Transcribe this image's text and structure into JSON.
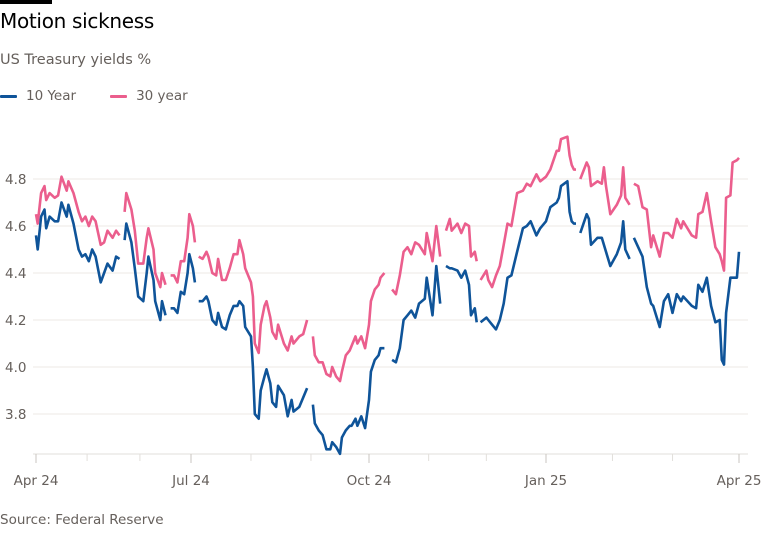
{
  "title": "Motion sickness",
  "subtitle": "US Treasury yields %",
  "source": "Source: Federal Reserve",
  "chart_data": {
    "type": "line",
    "title": "Motion sickness",
    "subtitle": "US Treasury yields %",
    "ylim": [
      3.63,
      5.0
    ],
    "yticks": [
      3.8,
      4.0,
      4.2,
      4.4,
      4.6,
      4.8
    ],
    "ytick_labels": [
      "3.8",
      "4.0",
      "4.2",
      "4.4",
      "4.6",
      "4.8"
    ],
    "xticks": [
      "2024-04-01",
      "2024-07-01",
      "2024-10-01",
      "2025-01-01",
      "2025-04-01"
    ],
    "xtick_labels": [
      "Apr 24",
      "Jul 24",
      "Oct 24",
      "Jan 25",
      "Apr 25"
    ],
    "grid": true,
    "legend_position": "top-left",
    "x": [
      "2024-04-01",
      "2024-04-02",
      "2024-04-04",
      "2024-04-06",
      "2024-04-07",
      "2024-04-09",
      "2024-04-12",
      "2024-04-14",
      "2024-04-16",
      "2024-04-19",
      "2024-04-20",
      "2024-04-23",
      "2024-04-26",
      "2024-04-28",
      "2024-04-30",
      "2024-05-02",
      "2024-05-04",
      "2024-05-06",
      "2024-05-09",
      "2024-05-11",
      "2024-05-13",
      "2024-05-16",
      "2024-05-18",
      "2024-05-20",
      "2024-05-21",
      "2024-05-23",
      "2024-05-24",
      "2024-05-27",
      "2024-05-29",
      "2024-05-31",
      "2024-06-03",
      "2024-06-05",
      "2024-06-06",
      "2024-06-09",
      "2024-06-10",
      "2024-06-13",
      "2024-06-14",
      "2024-06-16",
      "2024-06-17",
      "2024-06-19",
      "2024-06-21",
      "2024-06-23",
      "2024-06-25",
      "2024-06-27",
      "2024-06-29",
      "2024-06-30",
      "2024-07-02",
      "2024-07-03",
      "2024-07-04",
      "2024-07-05",
      "2024-07-07",
      "2024-07-09",
      "2024-07-10",
      "2024-07-12",
      "2024-07-14",
      "2024-07-15",
      "2024-07-17",
      "2024-07-19",
      "2024-07-21",
      "2024-07-23",
      "2024-07-25",
      "2024-07-26",
      "2024-07-28",
      "2024-07-29",
      "2024-08-01",
      "2024-08-02",
      "2024-08-03",
      "2024-08-05",
      "2024-08-06",
      "2024-08-08",
      "2024-08-09",
      "2024-08-11",
      "2024-08-12",
      "2024-08-14",
      "2024-08-15",
      "2024-08-18",
      "2024-08-20",
      "2024-08-22",
      "2024-08-23",
      "2024-08-26",
      "2024-08-28",
      "2024-08-30",
      "2024-09-01",
      "2024-09-02",
      "2024-09-03",
      "2024-09-05",
      "2024-09-07",
      "2024-09-09",
      "2024-09-11",
      "2024-09-12",
      "2024-09-14",
      "2024-09-16",
      "2024-09-17",
      "2024-09-19",
      "2024-09-21",
      "2024-09-22",
      "2024-09-24",
      "2024-09-25",
      "2024-09-27",
      "2024-09-29",
      "2024-10-01",
      "2024-10-02",
      "2024-10-04",
      "2024-10-06",
      "2024-10-07",
      "2024-10-09",
      "2024-10-11",
      "2024-10-13",
      "2024-10-15",
      "2024-10-17",
      "2024-10-19",
      "2024-10-21",
      "2024-10-23",
      "2024-10-25",
      "2024-10-27",
      "2024-10-30",
      "2024-10-31",
      "2024-11-03",
      "2024-11-05",
      "2024-11-07",
      "2024-11-09",
      "2024-11-10",
      "2024-11-12",
      "2024-11-13",
      "2024-11-16",
      "2024-11-18",
      "2024-11-20",
      "2024-11-22",
      "2024-11-23",
      "2024-11-25",
      "2024-11-26",
      "2024-11-27",
      "2024-11-28",
      "2024-12-01",
      "2024-12-02",
      "2024-12-04",
      "2024-12-06",
      "2024-12-08",
      "2024-12-10",
      "2024-12-12",
      "2024-12-14",
      "2024-12-17",
      "2024-12-20",
      "2024-12-22",
      "2024-12-24",
      "2024-12-27",
      "2024-12-29",
      "2025-01-01",
      "2025-01-03",
      "2025-01-06",
      "2025-01-07",
      "2025-01-08",
      "2025-01-11",
      "2025-01-12",
      "2025-01-13",
      "2025-01-14",
      "2025-01-15",
      "2025-01-16",
      "2025-01-17",
      "2025-01-20",
      "2025-01-21",
      "2025-01-22",
      "2025-01-25",
      "2025-01-27",
      "2025-01-28",
      "2025-01-29",
      "2025-01-31",
      "2025-02-03",
      "2025-02-05",
      "2025-02-06",
      "2025-02-07",
      "2025-02-09",
      "2025-02-10",
      "2025-02-11",
      "2025-02-13",
      "2025-02-15",
      "2025-02-17",
      "2025-02-19",
      "2025-02-20",
      "2025-02-23",
      "2025-02-25",
      "2025-02-27",
      "2025-03-01",
      "2025-03-03",
      "2025-03-05",
      "2025-03-06",
      "2025-03-10",
      "2025-03-12",
      "2025-03-13",
      "2025-03-15",
      "2025-03-17",
      "2025-03-19",
      "2025-03-21",
      "2025-03-23",
      "2025-03-24",
      "2025-03-25",
      "2025-03-26",
      "2025-03-28",
      "2025-03-29",
      "2025-03-31",
      "2025-04-01"
    ],
    "series": [
      {
        "name": "10 Year",
        "color": "#0f5499",
        "values": [
          4.56,
          4.5,
          4.64,
          4.67,
          4.59,
          4.64,
          4.62,
          4.62,
          4.7,
          4.64,
          4.69,
          4.61,
          4.5,
          4.47,
          4.48,
          4.45,
          4.5,
          4.47,
          4.36,
          4.4,
          4.44,
          4.41,
          4.47,
          4.46,
          null,
          4.54,
          4.61,
          4.53,
          4.42,
          4.3,
          4.28,
          4.4,
          4.47,
          4.37,
          4.28,
          4.2,
          4.28,
          4.22,
          null,
          4.25,
          4.25,
          4.23,
          4.32,
          4.31,
          4.4,
          4.48,
          4.42,
          4.36,
          null,
          4.28,
          4.28,
          4.3,
          4.28,
          4.2,
          4.18,
          4.23,
          4.17,
          4.16,
          4.22,
          4.26,
          4.26,
          4.28,
          4.26,
          4.17,
          4.13,
          4.0,
          3.8,
          3.78,
          3.9,
          3.96,
          3.99,
          3.93,
          3.85,
          3.83,
          3.92,
          3.88,
          3.79,
          3.86,
          3.81,
          3.83,
          3.87,
          3.91,
          null,
          3.84,
          3.76,
          3.73,
          3.71,
          3.65,
          3.65,
          3.68,
          3.66,
          3.63,
          3.7,
          3.73,
          3.75,
          3.75,
          3.78,
          3.75,
          3.79,
          3.74,
          3.86,
          3.98,
          4.03,
          4.05,
          4.08,
          4.08,
          null,
          4.03,
          4.02,
          4.08,
          4.2,
          4.22,
          4.24,
          4.21,
          4.27,
          4.29,
          4.38,
          4.22,
          4.43,
          4.27,
          null,
          4.43,
          4.42,
          4.42,
          4.41,
          4.38,
          4.41,
          4.35,
          4.22,
          4.25,
          4.19,
          null,
          4.19,
          4.21,
          4.2,
          4.18,
          4.16,
          4.2,
          4.27,
          4.38,
          4.39,
          4.49,
          4.59,
          4.6,
          4.62,
          4.56,
          4.59,
          4.62,
          4.68,
          4.7,
          4.72,
          4.77,
          4.79,
          4.66,
          4.62,
          4.61,
          4.61,
          null,
          4.57,
          4.65,
          4.63,
          4.52,
          4.55,
          4.55,
          4.52,
          4.49,
          4.43,
          4.48,
          4.53,
          4.62,
          4.5,
          4.46,
          null,
          4.55,
          4.51,
          4.47,
          4.34,
          4.27,
          4.26,
          4.17,
          4.28,
          4.31,
          4.23,
          4.31,
          4.28,
          4.3,
          4.26,
          4.25,
          4.35,
          4.32,
          4.38,
          4.26,
          4.19,
          4.2,
          4.03,
          4.01,
          4.23,
          4.38,
          4.38,
          4.38,
          4.49
        ]
      },
      {
        "name": "30 year",
        "color": "#eb5e8d",
        "values": [
          4.65,
          4.61,
          4.74,
          4.77,
          4.71,
          4.74,
          4.72,
          4.73,
          4.81,
          4.75,
          4.79,
          4.74,
          4.66,
          4.62,
          4.64,
          4.6,
          4.64,
          4.62,
          4.52,
          4.53,
          4.58,
          4.55,
          4.58,
          4.56,
          null,
          4.66,
          4.74,
          4.67,
          4.58,
          4.44,
          4.44,
          4.55,
          4.59,
          4.5,
          4.4,
          4.34,
          4.4,
          4.35,
          null,
          4.39,
          4.39,
          4.36,
          4.45,
          4.45,
          4.55,
          4.65,
          4.6,
          4.53,
          null,
          4.47,
          4.46,
          4.49,
          4.47,
          4.4,
          4.39,
          4.46,
          4.37,
          4.37,
          4.42,
          4.48,
          4.48,
          4.54,
          4.48,
          4.42,
          4.36,
          4.3,
          4.1,
          4.06,
          4.18,
          4.26,
          4.28,
          4.21,
          4.15,
          4.12,
          4.18,
          4.1,
          4.07,
          4.13,
          4.1,
          4.13,
          4.14,
          4.2,
          null,
          4.13,
          4.05,
          4.02,
          4.02,
          3.97,
          3.96,
          4.0,
          3.96,
          3.94,
          3.98,
          4.05,
          4.07,
          4.09,
          4.13,
          4.1,
          4.13,
          4.08,
          4.18,
          4.28,
          4.33,
          4.35,
          4.38,
          4.4,
          null,
          4.33,
          4.31,
          4.39,
          4.49,
          4.51,
          4.48,
          4.53,
          4.52,
          4.48,
          4.57,
          4.45,
          4.6,
          4.47,
          null,
          4.58,
          4.63,
          4.58,
          4.61,
          4.57,
          4.61,
          4.6,
          4.47,
          4.49,
          4.45,
          null,
          4.37,
          4.41,
          4.37,
          4.34,
          4.39,
          4.43,
          4.52,
          4.61,
          4.6,
          4.74,
          4.75,
          4.78,
          4.77,
          4.82,
          4.79,
          4.81,
          4.84,
          4.92,
          4.92,
          4.97,
          4.98,
          4.9,
          4.86,
          4.84,
          4.84,
          null,
          4.8,
          4.87,
          4.85,
          4.77,
          4.79,
          4.78,
          4.85,
          4.77,
          4.65,
          4.69,
          4.73,
          4.85,
          4.72,
          4.69,
          null,
          4.78,
          4.77,
          4.68,
          4.67,
          4.51,
          4.56,
          4.47,
          4.57,
          4.57,
          4.55,
          4.63,
          4.59,
          4.62,
          4.56,
          4.55,
          4.65,
          4.66,
          4.74,
          4.62,
          4.51,
          4.48,
          4.45,
          4.41,
          4.72,
          4.73,
          4.87,
          4.88,
          4.89
        ]
      }
    ]
  }
}
